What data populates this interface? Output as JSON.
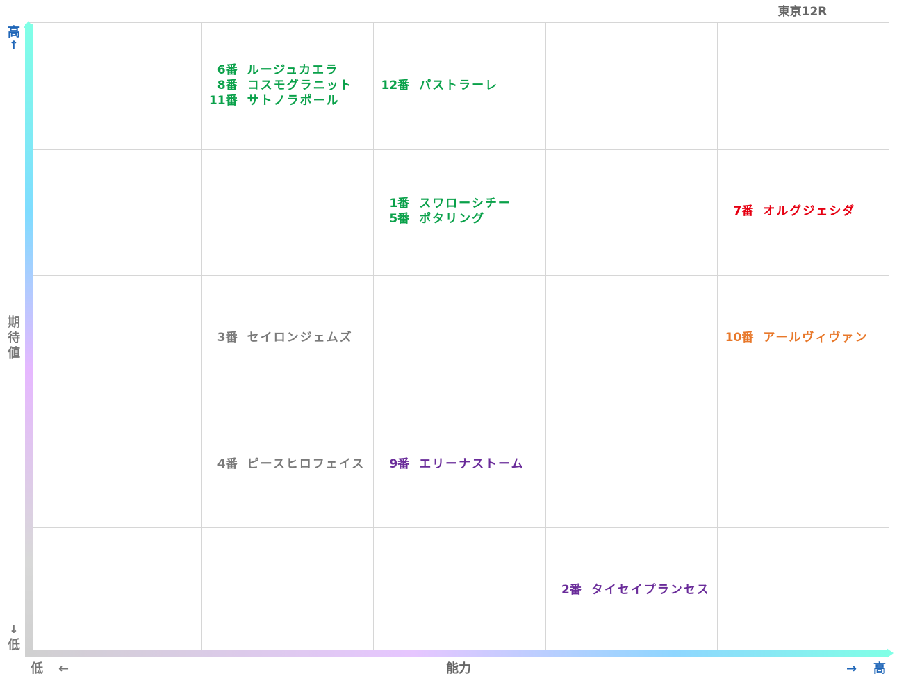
{
  "race_title": "東京12R",
  "y_axis": {
    "label": "期待値",
    "high": "高",
    "high_arrow": "↑",
    "low": "低",
    "low_arrow": "↓"
  },
  "x_axis": {
    "label": "能力",
    "low": "低",
    "low_arrow": "←",
    "high": "高",
    "high_arrow": "→"
  },
  "colors": {
    "green": "#0aa14a",
    "red": "#e60012",
    "orange": "#e8782a",
    "gray": "#7a7a7a",
    "purple": "#6a2c9a"
  },
  "chart_data": {
    "type": "scatter",
    "x_label": "能力",
    "y_label": "期待値",
    "x_levels": 5,
    "y_levels": 5,
    "cells": [
      {
        "x": 2,
        "y": 5,
        "color": "green",
        "horses": [
          {
            "num": "6番",
            "name": "ルージュカエラ"
          },
          {
            "num": "8番",
            "name": "コスモグラニット"
          },
          {
            "num": "11番",
            "name": "サトノラポール"
          }
        ]
      },
      {
        "x": 3,
        "y": 5,
        "color": "green",
        "horses": [
          {
            "num": "12番",
            "name": "パストラーレ"
          }
        ]
      },
      {
        "x": 3,
        "y": 4,
        "color": "green",
        "horses": [
          {
            "num": "1番",
            "name": "スワローシチー"
          },
          {
            "num": "5番",
            "name": "ポタリング"
          }
        ]
      },
      {
        "x": 5,
        "y": 4,
        "color": "red",
        "horses": [
          {
            "num": "7番",
            "name": "オルグジェシダ"
          }
        ]
      },
      {
        "x": 2,
        "y": 3,
        "color": "gray",
        "horses": [
          {
            "num": "3番",
            "name": "セイロンジェムズ"
          }
        ]
      },
      {
        "x": 5,
        "y": 3,
        "color": "orange",
        "horses": [
          {
            "num": "10番",
            "name": "アールヴィヴァン"
          }
        ]
      },
      {
        "x": 2,
        "y": 2,
        "color": "gray",
        "horses": [
          {
            "num": "4番",
            "name": "ピースヒロフェイス"
          }
        ]
      },
      {
        "x": 3,
        "y": 2,
        "color": "purple",
        "horses": [
          {
            "num": "9番",
            "name": "エリーナストーム"
          }
        ]
      },
      {
        "x": 4,
        "y": 1,
        "color": "purple",
        "horses": [
          {
            "num": "2番",
            "name": "タイセイプランセス"
          }
        ]
      }
    ]
  }
}
